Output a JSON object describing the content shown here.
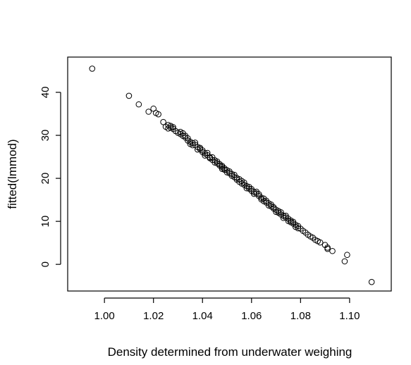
{
  "chart_data": {
    "type": "scatter",
    "title": "",
    "xlabel": "Density determined from underwater weighing",
    "ylabel": "fitted(lmmod)",
    "xlim": [
      0.985,
      1.117
    ],
    "ylim": [
      -6.2,
      48.2
    ],
    "xticks": [
      1.0,
      1.02,
      1.04,
      1.06,
      1.08,
      1.1
    ],
    "xtick_labels": [
      "1.00",
      "1.02",
      "1.04",
      "1.06",
      "1.08",
      "1.10"
    ],
    "yticks": [
      0,
      10,
      20,
      30,
      40
    ],
    "ytick_labels": [
      "0",
      "10",
      "20",
      "30",
      "40"
    ],
    "grid": false,
    "marker": "open-circle",
    "colors": {
      "marker": "#000000",
      "axes": "#000000",
      "background": "#ffffff"
    },
    "points": [
      [
        0.995,
        45.5
      ],
      [
        1.01,
        39.2
      ],
      [
        1.014,
        37.2
      ],
      [
        1.018,
        35.5
      ],
      [
        1.02,
        36.2
      ],
      [
        1.021,
        35.2
      ],
      [
        1.022,
        34.9
      ],
      [
        1.024,
        33.1
      ],
      [
        1.025,
        32.0
      ],
      [
        1.026,
        32.4
      ],
      [
        1.026,
        31.6
      ],
      [
        1.027,
        31.8
      ],
      [
        1.027,
        32.2
      ],
      [
        1.028,
        31.5
      ],
      [
        1.028,
        31.9
      ],
      [
        1.029,
        31.0
      ],
      [
        1.03,
        30.6
      ],
      [
        1.031,
        30.3
      ],
      [
        1.031,
        30.8
      ],
      [
        1.032,
        30.5
      ],
      [
        1.032,
        29.9
      ],
      [
        1.033,
        29.5
      ],
      [
        1.033,
        29.9
      ],
      [
        1.034,
        29.3
      ],
      [
        1.034,
        28.8
      ],
      [
        1.035,
        28.5
      ],
      [
        1.035,
        28.0
      ],
      [
        1.036,
        28.2
      ],
      [
        1.036,
        27.7
      ],
      [
        1.037,
        27.8
      ],
      [
        1.037,
        28.3
      ],
      [
        1.038,
        27.3
      ],
      [
        1.038,
        26.7
      ],
      [
        1.039,
        26.8
      ],
      [
        1.039,
        27.1
      ],
      [
        1.04,
        26.5
      ],
      [
        1.04,
        26.1
      ],
      [
        1.041,
        25.8
      ],
      [
        1.041,
        25.3
      ],
      [
        1.042,
        25.4
      ],
      [
        1.042,
        25.9
      ],
      [
        1.043,
        24.9
      ],
      [
        1.043,
        24.7
      ],
      [
        1.044,
        24.3
      ],
      [
        1.044,
        24.9
      ],
      [
        1.045,
        24.2
      ],
      [
        1.045,
        23.7
      ],
      [
        1.046,
        23.9
      ],
      [
        1.046,
        23.5
      ],
      [
        1.047,
        23.0
      ],
      [
        1.047,
        23.3
      ],
      [
        1.048,
        22.6
      ],
      [
        1.048,
        22.2
      ],
      [
        1.048,
        22.9
      ],
      [
        1.049,
        22.0
      ],
      [
        1.049,
        22.3
      ],
      [
        1.05,
        21.9
      ],
      [
        1.05,
        21.4
      ],
      [
        1.051,
        21.2
      ],
      [
        1.051,
        21.6
      ],
      [
        1.052,
        21.0
      ],
      [
        1.052,
        20.6
      ],
      [
        1.053,
        20.3
      ],
      [
        1.053,
        20.8
      ],
      [
        1.054,
        20.1
      ],
      [
        1.054,
        19.7
      ],
      [
        1.055,
        19.8
      ],
      [
        1.055,
        19.2
      ],
      [
        1.056,
        19.4
      ],
      [
        1.056,
        18.8
      ],
      [
        1.057,
        18.5
      ],
      [
        1.057,
        19.0
      ],
      [
        1.058,
        18.2
      ],
      [
        1.058,
        17.7
      ],
      [
        1.059,
        17.6
      ],
      [
        1.059,
        18.0
      ],
      [
        1.06,
        17.1
      ],
      [
        1.06,
        17.5
      ],
      [
        1.061,
        16.8
      ],
      [
        1.061,
        16.4
      ],
      [
        1.062,
        16.5
      ],
      [
        1.062,
        16.9
      ],
      [
        1.063,
        15.9
      ],
      [
        1.063,
        16.3
      ],
      [
        1.064,
        15.5
      ],
      [
        1.064,
        15.1
      ],
      [
        1.065,
        15.3
      ],
      [
        1.065,
        14.7
      ],
      [
        1.066,
        14.4
      ],
      [
        1.066,
        14.8
      ],
      [
        1.067,
        14.2
      ],
      [
        1.067,
        13.7
      ],
      [
        1.068,
        13.5
      ],
      [
        1.068,
        13.9
      ],
      [
        1.069,
        13.0
      ],
      [
        1.069,
        13.3
      ],
      [
        1.07,
        12.7
      ],
      [
        1.07,
        12.2
      ],
      [
        1.071,
        12.4
      ],
      [
        1.071,
        12.0
      ],
      [
        1.072,
        11.6
      ],
      [
        1.072,
        12.1
      ],
      [
        1.073,
        11.3
      ],
      [
        1.073,
        10.8
      ],
      [
        1.074,
        10.9
      ],
      [
        1.074,
        11.3
      ],
      [
        1.075,
        10.6
      ],
      [
        1.075,
        10.1
      ],
      [
        1.076,
        10.2
      ],
      [
        1.076,
        9.8
      ],
      [
        1.077,
        9.5
      ],
      [
        1.077,
        9.9
      ],
      [
        1.078,
        9.2
      ],
      [
        1.078,
        8.7
      ],
      [
        1.079,
        8.9
      ],
      [
        1.079,
        8.4
      ],
      [
        1.08,
        8.3
      ],
      [
        1.081,
        7.8
      ],
      [
        1.082,
        7.4
      ],
      [
        1.083,
        6.9
      ],
      [
        1.084,
        6.5
      ],
      [
        1.085,
        6.2
      ],
      [
        1.086,
        5.7
      ],
      [
        1.087,
        5.4
      ],
      [
        1.088,
        5.1
      ],
      [
        1.09,
        4.5
      ],
      [
        1.091,
        3.9
      ],
      [
        1.091,
        3.6
      ],
      [
        1.093,
        3.1
      ],
      [
        1.098,
        0.7
      ],
      [
        1.099,
        2.2
      ],
      [
        1.109,
        -4.1
      ]
    ]
  }
}
